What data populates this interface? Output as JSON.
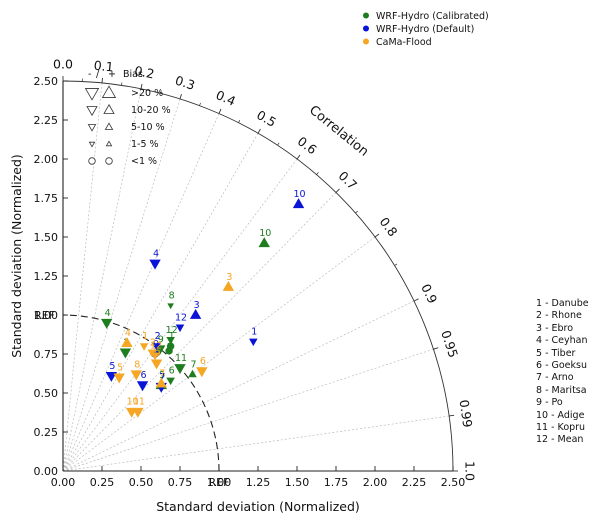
{
  "chart_data": {
    "type": "scatter",
    "subtype": "taylor-diagram",
    "title": "",
    "xlabel": "Standard deviation (Normalized)",
    "ylabel": "Standard deviation (Normalized)",
    "xlim": [
      0,
      2.5
    ],
    "ylim": [
      0,
      2.5
    ],
    "x_ticks": [
      "0.00",
      "0.25",
      "0.50",
      "0.75",
      "1.00",
      "1.25",
      "1.50",
      "1.75",
      "2.00",
      "2.25",
      "2.50"
    ],
    "y_ticks": [
      "0.00",
      "0.25",
      "0.50",
      "0.75",
      "1.00",
      "1.25",
      "1.50",
      "1.75",
      "2.00",
      "2.25",
      "2.50"
    ],
    "ref_label_x": "REF",
    "ref_label_y": "REF",
    "correlation_label": "Correlation",
    "correlation_ticks": [
      {
        "r": 0.0,
        "label": "0.0"
      },
      {
        "r": 0.1,
        "label": "0.1"
      },
      {
        "r": 0.2,
        "label": "0.2"
      },
      {
        "r": 0.3,
        "label": "0.3"
      },
      {
        "r": 0.4,
        "label": "0.4"
      },
      {
        "r": 0.5,
        "label": "0.5"
      },
      {
        "r": 0.6,
        "label": "0.6"
      },
      {
        "r": 0.7,
        "label": "0.7"
      },
      {
        "r": 0.8,
        "label": "0.8"
      },
      {
        "r": 0.9,
        "label": "0.9"
      },
      {
        "r": 0.95,
        "label": "0.95"
      },
      {
        "r": 0.99,
        "label": "0.99"
      },
      {
        "r": 1.0,
        "label": "1.0"
      }
    ],
    "legend": {
      "placement": "top-right",
      "series": [
        {
          "name": "WRF-Hydro (Calibrated)",
          "color": "#1e7d1e"
        },
        {
          "name": "WRF-Hydro (Default)",
          "color": "#0a14d6"
        },
        {
          "name": "CaMa-Flood",
          "color": "#f5a623"
        }
      ]
    },
    "bias_legend": {
      "header": [
        "-",
        "/",
        "+",
        "Bias"
      ],
      "rows": [
        {
          "label": ">20 %",
          "level": 4
        },
        {
          "label": "10-20 %",
          "level": 3
        },
        {
          "label": "5-10 %",
          "level": 2
        },
        {
          "label": "1-5 %",
          "level": 1
        },
        {
          "label": "<1 %",
          "level": 0
        }
      ]
    },
    "station_legend": [
      "1 - Danube",
      "2 - Rhone",
      "3 - Ebro",
      "4 - Ceyhan",
      "5 - Tiber",
      "6 - Goeksu",
      "7 - Arno",
      "8 - Maritsa",
      "9 - Po",
      "10 - Adige",
      "11 - Kopru",
      "12 - Mean"
    ],
    "series": [
      {
        "name": "WRF-Hydro (Calibrated)",
        "color": "#1e7d1e",
        "points": [
          {
            "id": "4",
            "x": 0.28,
            "y": 0.95,
            "dir": "down",
            "level": 3
          },
          {
            "id": "10",
            "x": 1.29,
            "y": 1.46,
            "dir": "up",
            "level": 3
          },
          {
            "id": "8",
            "x": 0.69,
            "y": 1.06,
            "dir": "down",
            "level": 1
          },
          {
            "id": "12",
            "x": 0.69,
            "y": 0.84,
            "dir": "down",
            "level": 2
          },
          {
            "id": "9",
            "x": 0.62,
            "y": 0.78,
            "dir": "down",
            "level": 3
          },
          {
            "id": "2",
            "x": 0.4,
            "y": 0.76,
            "dir": "down",
            "level": 3
          },
          {
            "id": "3",
            "x": 0.68,
            "y": 0.77,
            "dir": "none",
            "level": 0
          },
          {
            "id": "11",
            "x": 0.75,
            "y": 0.66,
            "dir": "down",
            "level": 3
          },
          {
            "id": "7",
            "x": 0.83,
            "y": 0.62,
            "dir": "up",
            "level": 2
          },
          {
            "id": "6",
            "x": 0.69,
            "y": 0.58,
            "dir": "down",
            "level": 2
          },
          {
            "id": "5",
            "x": 0.63,
            "y": 0.55,
            "dir": "up",
            "level": 3
          },
          {
            "id": "1",
            "x": 0.69,
            "y": 0.8,
            "dir": "none",
            "level": 0
          }
        ]
      },
      {
        "name": "WRF-Hydro (Default)",
        "color": "#0a14d6",
        "points": [
          {
            "id": "4",
            "x": 0.59,
            "y": 1.33,
            "dir": "down",
            "level": 3
          },
          {
            "id": "10",
            "x": 1.51,
            "y": 1.71,
            "dir": "up",
            "level": 3
          },
          {
            "id": "3",
            "x": 0.85,
            "y": 1.0,
            "dir": "up",
            "level": 3
          },
          {
            "id": "12",
            "x": 0.75,
            "y": 0.92,
            "dir": "down",
            "level": 2
          },
          {
            "id": "1",
            "x": 1.22,
            "y": 0.83,
            "dir": "down",
            "level": 2
          },
          {
            "id": "2",
            "x": 0.6,
            "y": 0.8,
            "dir": "down",
            "level": 2
          },
          {
            "id": "9",
            "x": 0.59,
            "y": 0.75,
            "dir": "none",
            "level": 0
          },
          {
            "id": "5",
            "x": 0.31,
            "y": 0.61,
            "dir": "down",
            "level": 3
          },
          {
            "id": "6",
            "x": 0.51,
            "y": 0.55,
            "dir": "down",
            "level": 3
          },
          {
            "id": "7",
            "x": 0.63,
            "y": 0.54,
            "dir": "down",
            "level": 3
          }
        ]
      },
      {
        "name": "CaMa-Flood",
        "color": "#f5a623",
        "points": [
          {
            "id": "3",
            "x": 1.06,
            "y": 1.18,
            "dir": "up",
            "level": 3
          },
          {
            "id": "4",
            "x": 0.41,
            "y": 0.82,
            "dir": "up",
            "level": 3
          },
          {
            "id": "1",
            "x": 0.52,
            "y": 0.8,
            "dir": "down",
            "level": 2
          },
          {
            "id": "12",
            "x": 0.59,
            "y": 0.74,
            "dir": "down",
            "level": 2
          },
          {
            "id": "9",
            "x": 0.6,
            "y": 0.69,
            "dir": "down",
            "level": 3
          },
          {
            "id": "2",
            "x": 0.57,
            "y": 0.76,
            "dir": "down",
            "level": 2
          },
          {
            "id": "6",
            "x": 0.89,
            "y": 0.64,
            "dir": "down",
            "level": 3
          },
          {
            "id": "8",
            "x": 0.47,
            "y": 0.62,
            "dir": "down",
            "level": 3
          },
          {
            "id": "5",
            "x": 0.36,
            "y": 0.6,
            "dir": "down",
            "level": 3
          },
          {
            "id": "7",
            "x": 0.63,
            "y": 0.56,
            "dir": "up",
            "level": 3
          },
          {
            "id": "10",
            "x": 0.44,
            "y": 0.38,
            "dir": "down",
            "level": 3
          },
          {
            "id": "11",
            "x": 0.48,
            "y": 0.38,
            "dir": "down",
            "level": 3
          }
        ]
      }
    ]
  }
}
